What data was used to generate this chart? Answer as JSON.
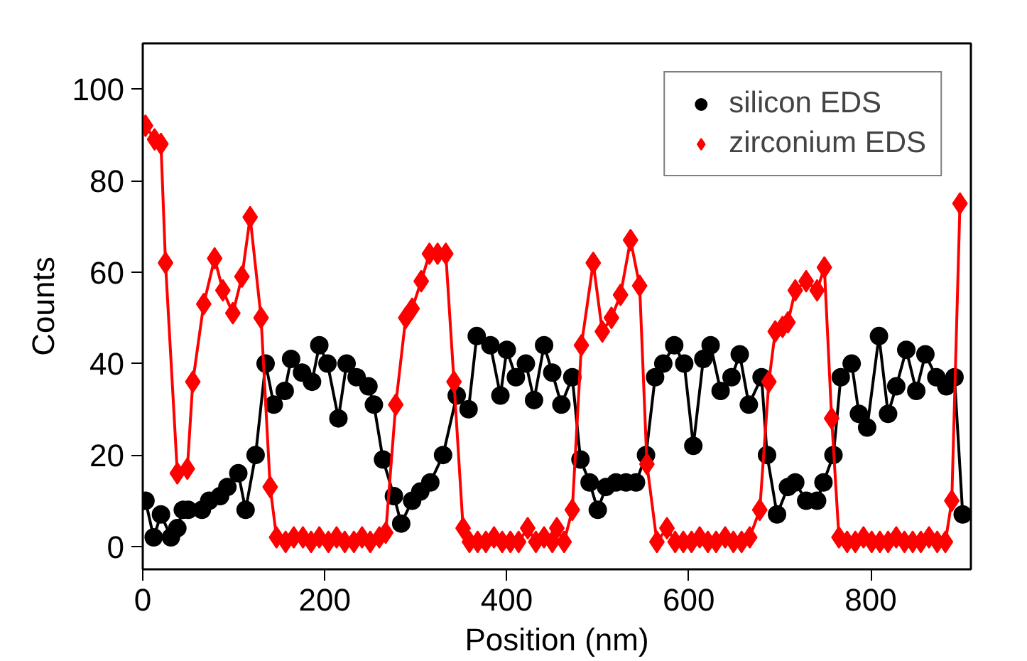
{
  "chart_data": {
    "type": "line",
    "xlabel": "Position (nm)",
    "ylabel": "Counts",
    "xlim": [
      0,
      910
    ],
    "ylim": [
      -5,
      110
    ],
    "xticks": [
      0,
      200,
      400,
      600,
      800
    ],
    "yticks": [
      0,
      20,
      40,
      60,
      80,
      100
    ],
    "grid": false,
    "legend": "top right",
    "series": [
      {
        "name": "silicon EDS",
        "color": "#000000",
        "marker": "circle",
        "x": [
          3,
          12,
          20,
          31,
          38,
          44,
          50,
          65,
          73,
          85,
          93,
          105,
          113,
          124,
          135,
          144,
          156,
          163,
          175,
          186,
          194,
          203,
          215,
          224,
          235,
          248,
          254,
          264,
          276,
          284,
          296,
          305,
          316,
          330,
          345,
          358,
          367,
          382,
          393,
          400,
          410,
          421,
          430,
          441,
          450,
          460,
          472,
          481,
          491,
          500,
          509,
          520,
          531,
          542,
          553,
          563,
          572,
          584,
          595,
          605,
          616,
          624,
          635,
          647,
          656,
          666,
          680,
          686,
          697,
          709,
          717,
          729,
          741,
          748,
          759,
          767,
          779,
          787,
          796,
          809,
          819,
          828,
          839,
          850,
          860,
          872,
          883,
          892,
          901
        ],
        "values": [
          10,
          2,
          7,
          2,
          4,
          8,
          8,
          8,
          10,
          11,
          13,
          16,
          8,
          20,
          40,
          31,
          34,
          41,
          38,
          36,
          44,
          40,
          28,
          40,
          37,
          35,
          31,
          19,
          11,
          5,
          10,
          12,
          14,
          20,
          33,
          30,
          46,
          44,
          33,
          43,
          37,
          40,
          32,
          44,
          38,
          31,
          37,
          19,
          14,
          8,
          13,
          14,
          14,
          14,
          20,
          37,
          40,
          44,
          40,
          22,
          41,
          44,
          34,
          37,
          42,
          31,
          37,
          20,
          7,
          13,
          14,
          10,
          10,
          14,
          20,
          37,
          40,
          29,
          26,
          46,
          29,
          35,
          43,
          34,
          42,
          37,
          35,
          37,
          7
        ]
      },
      {
        "name": "zirconium EDS",
        "color": "#ff0000",
        "marker": "diamond",
        "x": [
          3,
          13,
          20,
          25,
          38,
          49,
          55,
          67,
          79,
          88,
          99,
          109,
          118,
          130,
          140,
          147,
          157,
          166,
          176,
          185,
          194,
          204,
          213,
          222,
          232,
          241,
          250,
          260,
          267,
          278,
          289,
          296,
          306,
          315,
          324,
          333,
          342,
          352,
          359,
          368,
          377,
          386,
          395,
          404,
          413,
          423,
          432,
          441,
          450,
          455,
          463,
          472,
          482,
          495,
          505,
          515,
          525,
          536,
          546,
          554,
          565,
          576,
          585,
          594,
          603,
          612,
          621,
          630,
          640,
          649,
          658,
          667,
          678,
          688,
          695,
          703,
          709,
          717,
          729,
          741,
          749,
          757,
          765,
          774,
          783,
          792,
          801,
          810,
          819,
          828,
          837,
          846,
          855,
          864,
          873,
          882,
          889,
          898
        ],
        "values": [
          92,
          89,
          88,
          62,
          16,
          17,
          36,
          53,
          63,
          56,
          51,
          59,
          72,
          50,
          13,
          2,
          1,
          2,
          2,
          1,
          2,
          1,
          2,
          1,
          1,
          2,
          1,
          2,
          3,
          31,
          50,
          52,
          58,
          64,
          64,
          64,
          36,
          4,
          1,
          1,
          1,
          2,
          1,
          1,
          1,
          4,
          1,
          2,
          1,
          4,
          1,
          8,
          44,
          62,
          47,
          50,
          55,
          67,
          57,
          18,
          1,
          4,
          1,
          1,
          1,
          2,
          1,
          1,
          2,
          1,
          1,
          2,
          8,
          36,
          47,
          48,
          49,
          56,
          58,
          56,
          61,
          28,
          2,
          1,
          1,
          2,
          1,
          1,
          1,
          2,
          1,
          1,
          1,
          2,
          1,
          1,
          10,
          75
        ]
      }
    ]
  }
}
